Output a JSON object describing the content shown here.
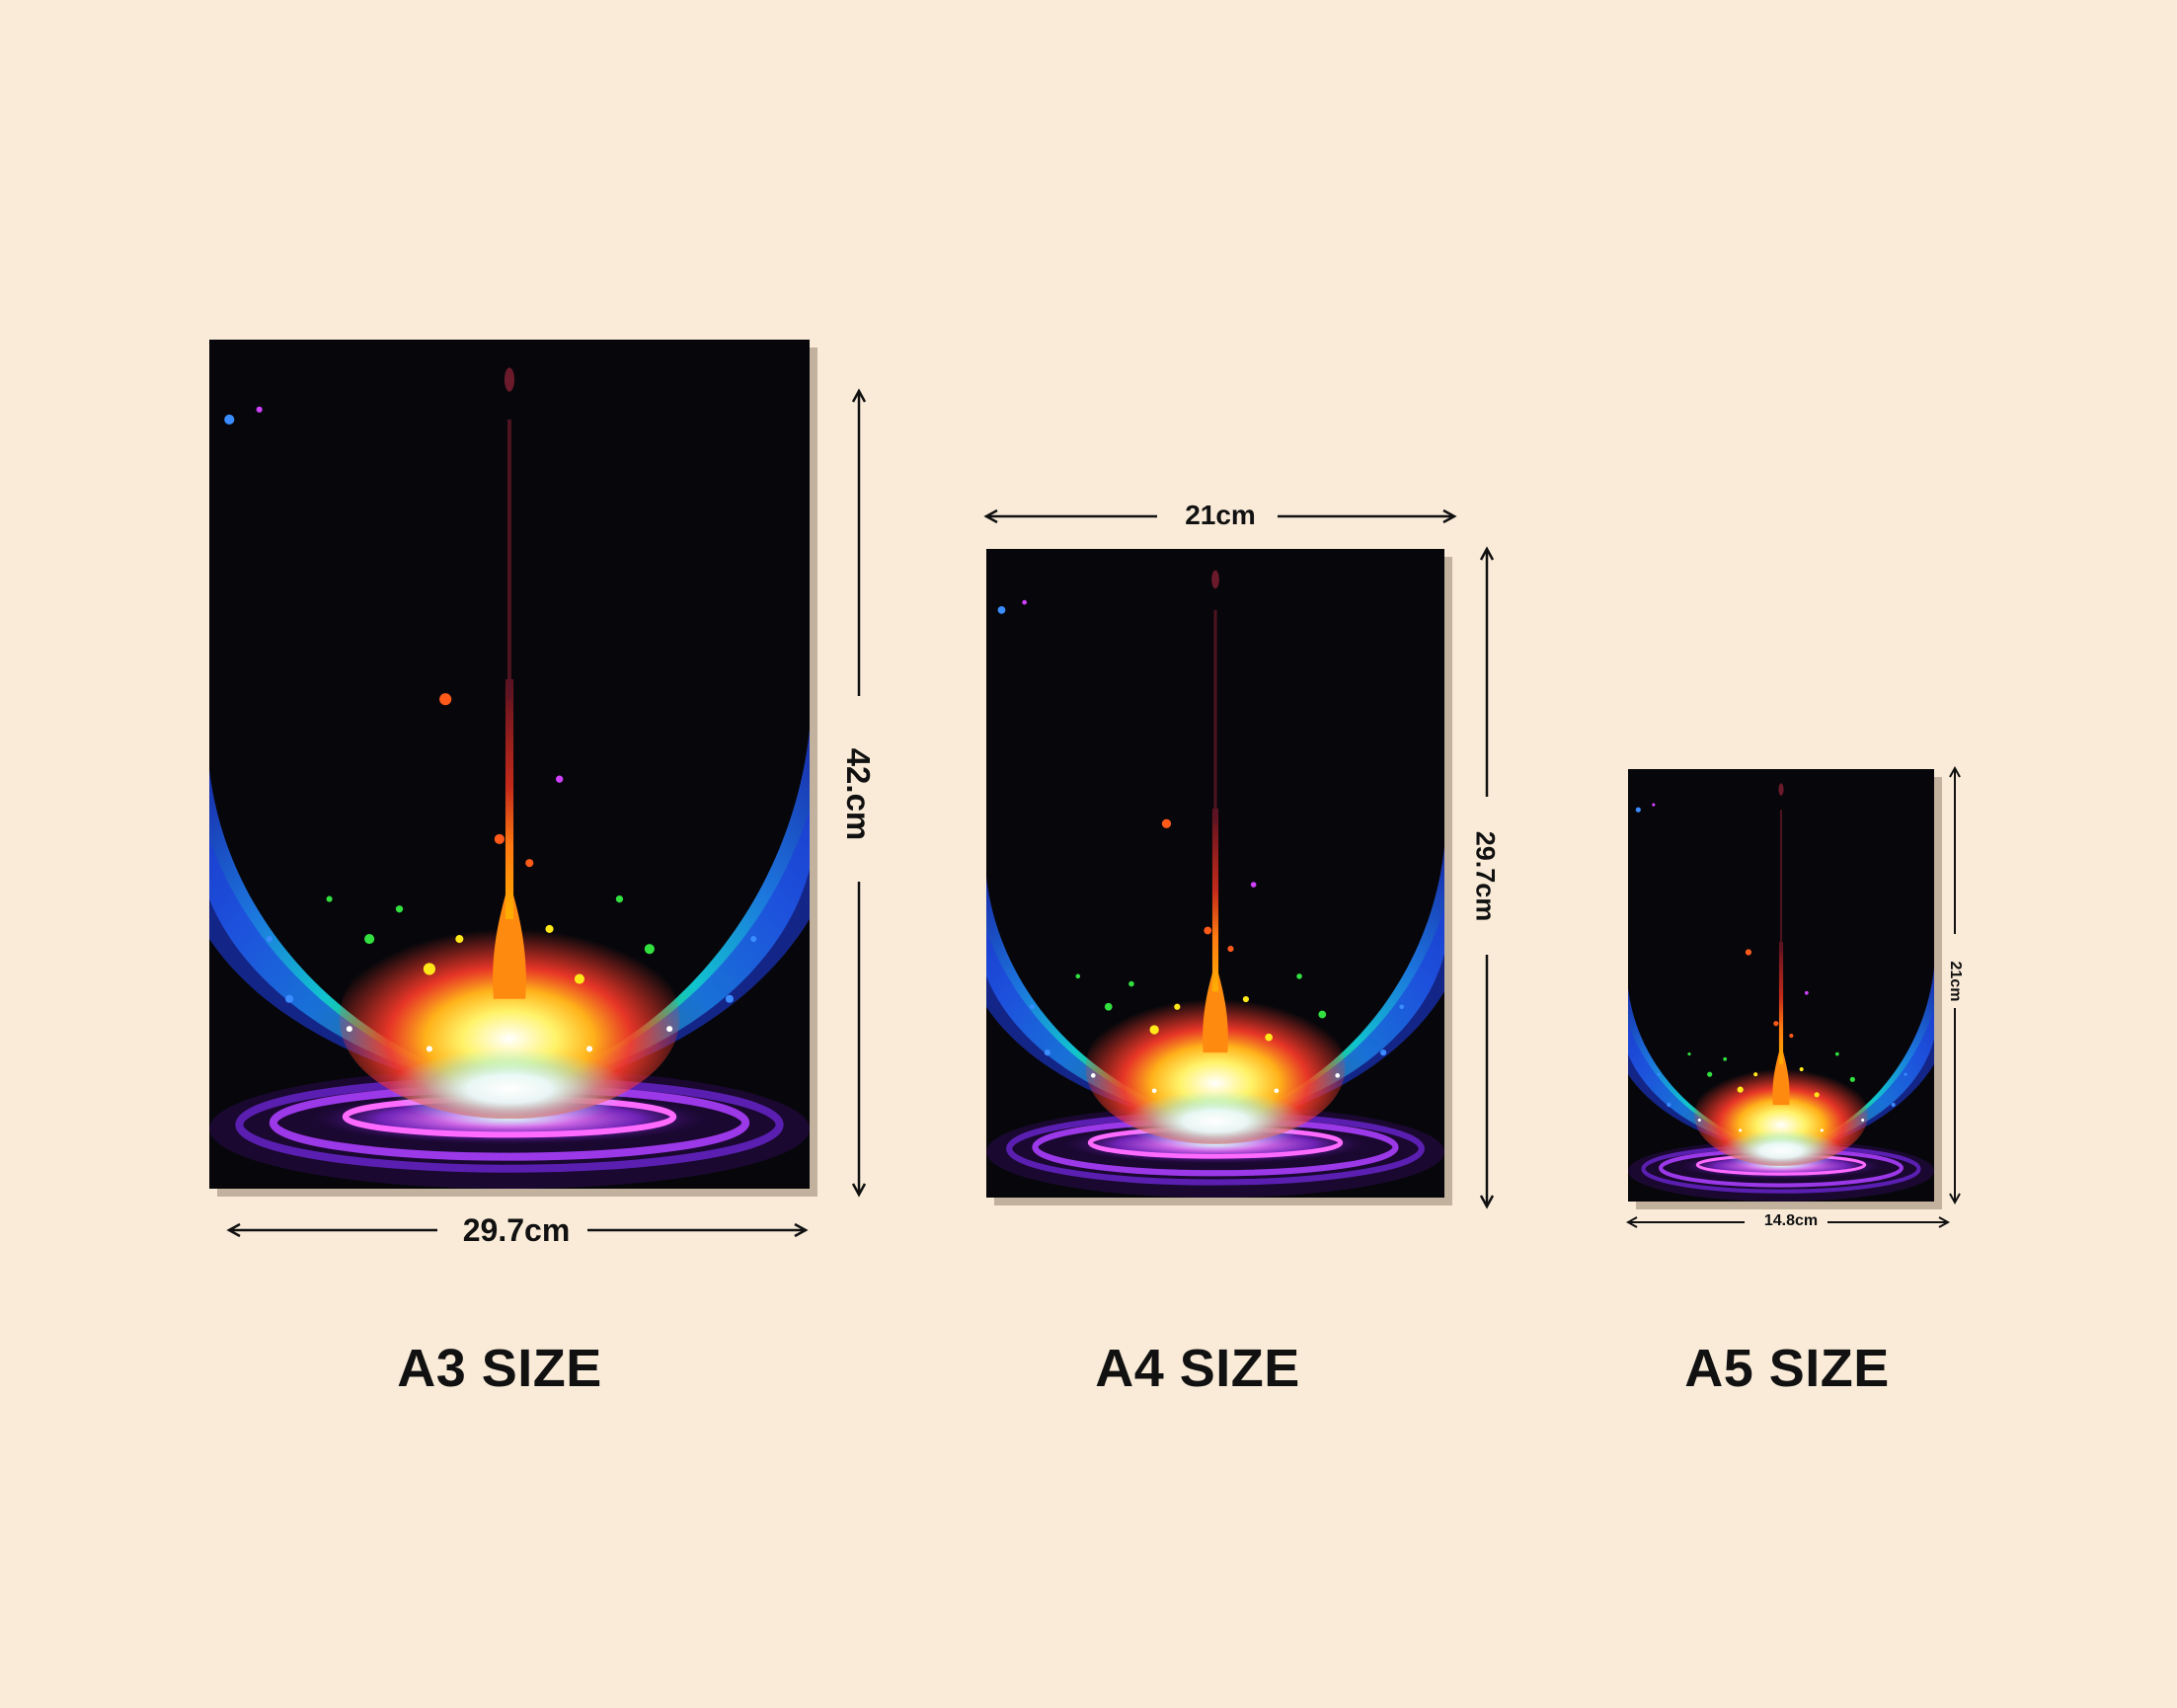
{
  "colors": {
    "background": "#f9ebd8",
    "poster": "#07070b",
    "text": "#111111"
  },
  "artwork": {
    "description_icon": "rainbow-splash-art"
  },
  "posters": [
    {
      "id": "a3",
      "label": "A3 SIZE",
      "width_text": "29.7cm",
      "height_text": "42.cm"
    },
    {
      "id": "a4",
      "label": "A4 SIZE",
      "width_text": "21cm",
      "height_text": "29.7cm"
    },
    {
      "id": "a5",
      "label": "A5 SIZE",
      "width_text": "14.8cm",
      "height_text": "21cm"
    }
  ]
}
